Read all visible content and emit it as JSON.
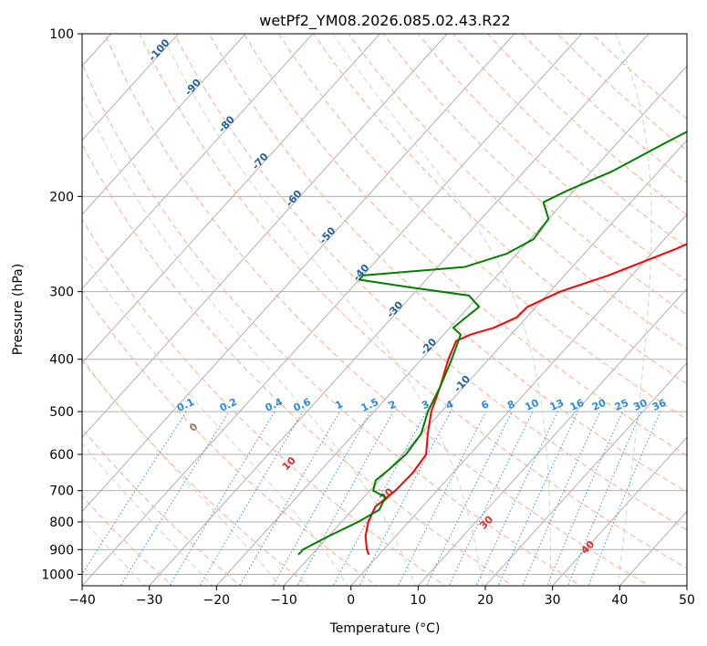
{
  "chart_data": {
    "type": "line",
    "title": "wetPf2_YM08.2026.085.02.43.R22",
    "xlabel": "Temperature (°C)",
    "ylabel": "Pressure (hPa)",
    "xlim": [
      -40,
      50
    ],
    "ylim": [
      1050,
      100
    ],
    "y_scale": "log",
    "x_ticks": [
      -40,
      -30,
      -20,
      -10,
      0,
      10,
      20,
      30,
      40,
      50
    ],
    "x_tick_labels": [
      "−40",
      "−30",
      "−20",
      "−10",
      "0",
      "10",
      "20",
      "30",
      "40",
      "50"
    ],
    "y_ticks": [
      100,
      200,
      300,
      400,
      500,
      600,
      700,
      800,
      900,
      1000
    ],
    "y_tick_labels": [
      "100",
      "200",
      "300",
      "400",
      "500",
      "600",
      "700",
      "800",
      "900",
      "1000"
    ],
    "grid": true,
    "series": [
      {
        "name": "Temperature",
        "color": "#ff0000",
        "points": [
          [
            920,
            -1.5
          ],
          [
            900,
            -2.5
          ],
          [
            850,
            -4.5
          ],
          [
            800,
            -6.0
          ],
          [
            750,
            -7.0
          ],
          [
            700,
            -6.2
          ],
          [
            650,
            -6.0
          ],
          [
            600,
            -6.5
          ],
          [
            550,
            -9.0
          ],
          [
            500,
            -11.5
          ],
          [
            450,
            -13.5
          ],
          [
            400,
            -16.0
          ],
          [
            370,
            -17.3
          ],
          [
            360,
            -16.0
          ],
          [
            350,
            -13.5
          ],
          [
            335,
            -11.5
          ],
          [
            320,
            -11.3
          ],
          [
            300,
            -8.5
          ],
          [
            280,
            -3.5
          ],
          [
            250,
            3.0
          ],
          [
            220,
            9.0
          ],
          [
            200,
            13.5
          ],
          [
            180,
            18.0
          ],
          [
            160,
            22.5
          ],
          [
            140,
            27.5
          ],
          [
            125,
            31.5
          ],
          [
            112,
            33.0
          ],
          [
            105,
            34.5
          ],
          [
            100,
            35.5
          ]
        ]
      },
      {
        "name": "Dewpoint",
        "color": "#008000",
        "points": [
          [
            920,
            -12.0
          ],
          [
            900,
            -12.0
          ],
          [
            850,
            -10.0
          ],
          [
            800,
            -7.5
          ],
          [
            760,
            -6.0
          ],
          [
            720,
            -6.8
          ],
          [
            700,
            -9.5
          ],
          [
            670,
            -10.5
          ],
          [
            640,
            -10.0
          ],
          [
            600,
            -9.5
          ],
          [
            550,
            -10.0
          ],
          [
            500,
            -12.0
          ],
          [
            450,
            -13.5
          ],
          [
            400,
            -15.5
          ],
          [
            360,
            -17.5
          ],
          [
            350,
            -19.5
          ],
          [
            340,
            -19.2
          ],
          [
            320,
            -18.5
          ],
          [
            305,
            -21.5
          ],
          [
            295,
            -31.0
          ],
          [
            285,
            -40.0
          ],
          [
            280,
            -40.0
          ],
          [
            270,
            -26.0
          ],
          [
            255,
            -21.5
          ],
          [
            240,
            -19.5
          ],
          [
            220,
            -20.0
          ],
          [
            205,
            -23.0
          ],
          [
            195,
            -21.0
          ],
          [
            180,
            -17.0
          ],
          [
            160,
            -13.0
          ],
          [
            145,
            -9.5
          ],
          [
            135,
            -9.0
          ],
          [
            125,
            -8.5
          ],
          [
            115,
            -5.0
          ],
          [
            105,
            -2.0
          ],
          [
            100,
            -1.5
          ]
        ]
      }
    ],
    "isotherms": [
      -100,
      -90,
      -80,
      -70,
      -60,
      -50,
      -40,
      -30,
      -20,
      -10,
      0,
      10,
      20,
      30,
      40,
      50
    ],
    "dry_adiabats_C": [
      -30,
      -20,
      -10,
      0,
      10,
      20,
      30,
      40,
      50,
      60,
      70,
      80,
      90,
      100,
      110,
      120,
      130,
      140,
      150,
      160,
      170,
      180
    ],
    "moist_adiabats_C": [
      -30,
      -20,
      -10,
      0,
      10,
      20,
      30,
      40
    ],
    "mixing_ratio_lines": [
      0.1,
      0.2,
      0.4,
      0.6,
      1,
      1.5,
      2,
      3,
      4,
      6,
      8,
      10,
      13,
      16,
      20,
      25,
      30,
      36
    ],
    "isotherm_labels": [
      "-100",
      "-90",
      "-80",
      "-70",
      "-60",
      "-50",
      "-40",
      "-30",
      "-20",
      "-10"
    ],
    "dry_adiabat_labels": [
      "0",
      "10",
      "20",
      "30",
      "40"
    ],
    "mixing_ratio_labels": [
      "0.1",
      "0.2",
      "0.4",
      "0.6",
      "1",
      "1.5",
      "2",
      "3",
      "4",
      "6",
      "8",
      "10",
      "13",
      "16",
      "20",
      "25",
      "30",
      "36"
    ]
  },
  "colors": {
    "grid": "#b0b0b0",
    "isotherm": "#777777",
    "isotherm_label": "#1f5f9f",
    "dry_adiabat": "#ffaa88",
    "dry_adiabat_label": "#d03030",
    "dry_adiabat_zero_label": "#808080",
    "moist_adiabat": "#bfe0bf",
    "mixing_ratio": "#3a8fd8",
    "mixing_ratio_label": "#2a8ae0"
  }
}
